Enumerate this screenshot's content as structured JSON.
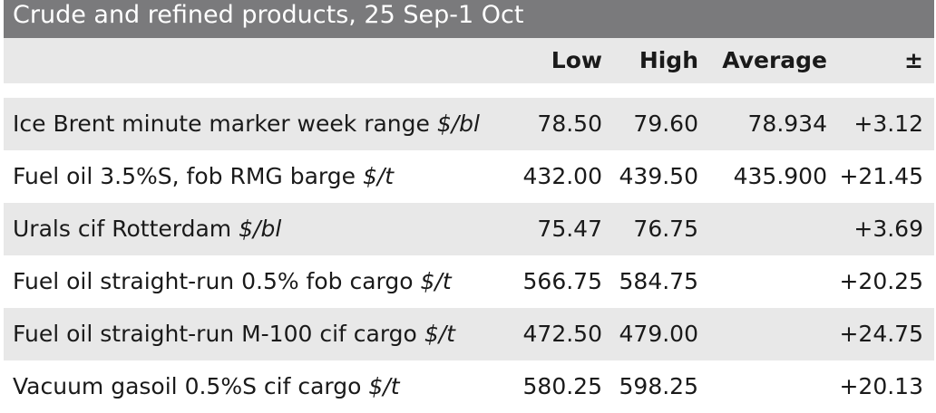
{
  "chart_data": {
    "type": "table",
    "title": "Crude and refined products, 25 Sep-1 Oct",
    "columns": [
      "Low",
      "High",
      "Average",
      "±"
    ],
    "rows": [
      {
        "name": "Ice Brent minute marker week range",
        "unit": "$/bl",
        "low": "78.50",
        "high": "79.60",
        "average": "78.934",
        "change": "+3.12"
      },
      {
        "name": "Fuel oil 3.5%S, fob RMG barge",
        "unit": "$/t",
        "low": "432.00",
        "high": "439.50",
        "average": "435.900",
        "change": "+21.45"
      },
      {
        "name": "Urals cif Rotterdam",
        "unit": "$/bl",
        "low": "75.47",
        "high": "76.75",
        "average": "",
        "change": "+3.69"
      },
      {
        "name": "Fuel oil straight-run 0.5% fob cargo",
        "unit": "$/t",
        "low": "566.75",
        "high": "584.75",
        "average": "",
        "change": "+20.25"
      },
      {
        "name": "Fuel oil straight-run M-100 cif cargo",
        "unit": "$/t",
        "low": "472.50",
        "high": "479.00",
        "average": "",
        "change": "+24.75"
      },
      {
        "name": "Vacuum gasoil 0.5%S cif cargo",
        "unit": "$/t",
        "low": "580.25",
        "high": "598.25",
        "average": "",
        "change": "+20.13"
      }
    ]
  },
  "colors": {
    "title_background": "#7a7a7c",
    "shaded_row": "#e8e8e8"
  }
}
